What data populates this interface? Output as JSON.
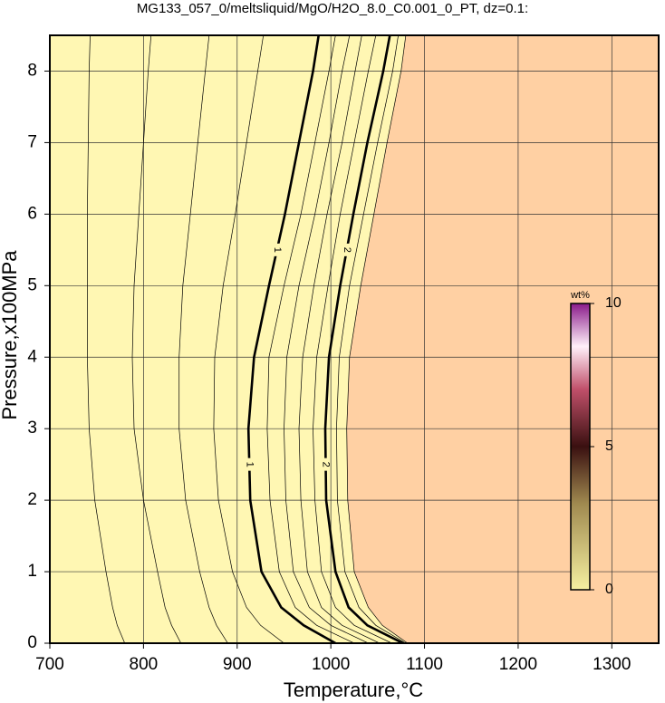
{
  "chart_data": {
    "type": "contour",
    "title": "MG133_057_0/meltsliquid/MgO/H2O_8.0_C0.001_0_PT, dz=0.1:",
    "x_label": "Temperature,°C",
    "y_label": "Pressure,x100MPa",
    "xlim": [
      700,
      1350
    ],
    "ylim": [
      0,
      8.5
    ],
    "xticks": [
      700,
      800,
      900,
      1000,
      1100,
      1200,
      1300
    ],
    "yticks": [
      0,
      1,
      2,
      3,
      4,
      5,
      6,
      7,
      8
    ],
    "grid": true,
    "y": [
      0,
      0.25,
      0.5,
      1,
      2,
      3,
      4,
      5,
      6,
      7,
      8,
      8.5
    ],
    "contours": [
      {
        "level": 0.2,
        "x": [
          780,
          772,
          767,
          760,
          748,
          742,
          740,
          740,
          740,
          741,
          742,
          743
        ]
      },
      {
        "level": 0.4,
        "x": [
          840,
          830,
          823,
          815,
          800,
          790,
          788,
          790,
          795,
          800,
          805,
          808
        ]
      },
      {
        "level": 0.6,
        "x": [
          890,
          878,
          870,
          860,
          845,
          838,
          838,
          842,
          850,
          858,
          866,
          870
        ]
      },
      {
        "level": 0.8,
        "x": [
          950,
          925,
          910,
          895,
          880,
          875,
          876,
          885,
          898,
          910,
          922,
          928
        ]
      },
      {
        "level": 1,
        "bold": true,
        "x": [
          1005,
          971,
          947,
          926,
          914,
          912,
          918,
          934,
          951,
          966,
          981,
          987
        ]
      },
      {
        "level": 1.2,
        "x": [
          1025,
          985,
          962,
          945,
          935,
          932,
          934,
          950,
          968,
          983,
          998,
          1005
        ]
      },
      {
        "level": 1.4,
        "x": [
          1040,
          1000,
          977,
          960,
          952,
          950,
          953,
          966,
          983,
          998,
          1012,
          1020
        ]
      },
      {
        "level": 1.6,
        "x": [
          1052,
          1012,
          990,
          975,
          968,
          966,
          970,
          982,
          996,
          1012,
          1026,
          1033
        ]
      },
      {
        "level": 1.8,
        "x": [
          1065,
          1025,
          1005,
          990,
          983,
          981,
          985,
          997,
          1010,
          1025,
          1040,
          1048
        ]
      },
      {
        "level": 2,
        "bold": true,
        "x": [
          1077,
          1039,
          1019,
          1005,
          995,
          994,
          998,
          1010,
          1024,
          1039,
          1056,
          1063
        ]
      },
      {
        "level": 2.2,
        "x": [
          1080,
          1048,
          1030,
          1015,
          1007,
          1006,
          1009,
          1020,
          1035,
          1050,
          1066,
          1072
        ]
      },
      {
        "level": 2.4,
        "x": [
          1082,
          1055,
          1040,
          1025,
          1018,
          1017,
          1020,
          1032,
          1046,
          1060,
          1075,
          1080
        ]
      }
    ],
    "colorbar": {
      "label": "wt%",
      "clim": [
        0,
        10
      ],
      "ticks": [
        0,
        5,
        10
      ]
    }
  }
}
